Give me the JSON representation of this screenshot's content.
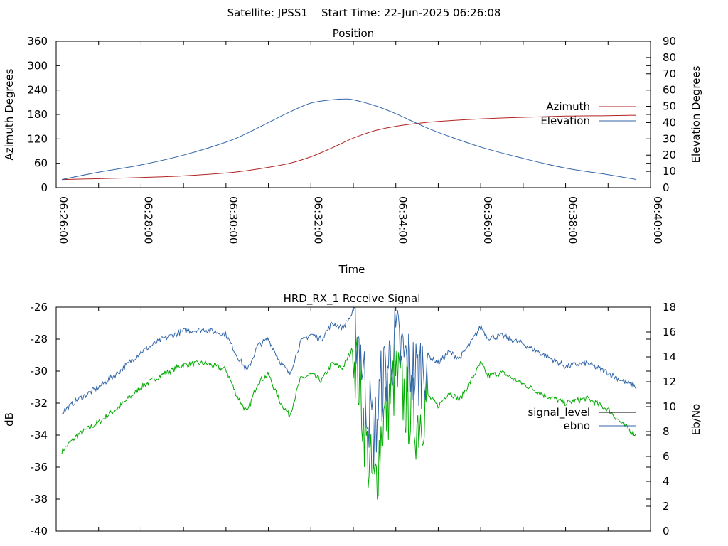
{
  "page": {
    "header": "Satellite: JPSS1    Start Time: 22-Jun-2025 06:26:08"
  },
  "colors": {
    "azimuth": "#b22222",
    "elevation": "#3366a8",
    "signal_level": "#000000",
    "ebno_plotted": "#3366a8",
    "signal_plotted": "#00aa00",
    "axes": "#000000",
    "background": "#ffffff"
  },
  "chart_data": [
    {
      "type": "line",
      "title": "Position",
      "xlabel": "Time",
      "ylabel": "Azimuth Degrees",
      "y2label": "Elevation Degrees",
      "xlim": [
        "06:26:00",
        "06:40:00"
      ],
      "ylim": [
        0,
        360
      ],
      "y2lim": [
        0,
        90
      ],
      "xticks": [
        "06:26:00",
        "06:28:00",
        "06:30:00",
        "06:32:00",
        "06:34:00",
        "06:36:00",
        "06:38:00",
        "06:40:00"
      ],
      "yticks": [
        "0",
        "60",
        "120",
        "180",
        "240",
        "300",
        "360"
      ],
      "y2ticks": [
        "0",
        "10",
        "20",
        "30",
        "40",
        "50",
        "60",
        "70",
        "80",
        "90"
      ],
      "legend_position": "right",
      "grid": false,
      "series": [
        {
          "name": "Azimuth",
          "axis": "y",
          "x": [
            "06:26:08",
            "06:27:00",
            "06:28:00",
            "06:29:00",
            "06:30:00",
            "06:30:30",
            "06:31:00",
            "06:31:30",
            "06:32:00",
            "06:32:30",
            "06:33:00",
            "06:33:30",
            "06:34:00",
            "06:34:30",
            "06:35:00",
            "06:36:00",
            "06:37:00",
            "06:38:00",
            "06:39:00",
            "06:39:40"
          ],
          "values": [
            20,
            22,
            25,
            29,
            36,
            42,
            50,
            60,
            76,
            98,
            122,
            140,
            151,
            158,
            163,
            169,
            173,
            176,
            177,
            178
          ]
        },
        {
          "name": "Elevation",
          "axis": "y2",
          "x": [
            "06:26:08",
            "06:27:00",
            "06:28:00",
            "06:29:00",
            "06:30:00",
            "06:30:30",
            "06:31:00",
            "06:31:30",
            "06:32:00",
            "06:32:30",
            "06:32:50",
            "06:33:00",
            "06:33:30",
            "06:34:00",
            "06:34:30",
            "06:35:00",
            "06:36:00",
            "06:37:00",
            "06:38:00",
            "06:39:00",
            "06:39:40"
          ],
          "values": [
            5,
            9.5,
            14,
            20,
            28,
            33.5,
            40,
            46.5,
            52,
            54,
            54.5,
            54,
            50.5,
            45.5,
            39.5,
            34,
            25,
            18,
            12,
            8,
            5
          ]
        }
      ]
    },
    {
      "type": "line",
      "title": "HRD_RX_1 Receive Signal",
      "ylabel": "dB",
      "y2label": "Eb/No",
      "ylim": [
        -40,
        -26
      ],
      "y2lim": [
        0,
        18
      ],
      "yticks": [
        "-40",
        "-38",
        "-36",
        "-34",
        "-32",
        "-30",
        "-28",
        "-26"
      ],
      "y2ticks": [
        "0",
        "2",
        "4",
        "6",
        "8",
        "10",
        "12",
        "14",
        "16",
        "18"
      ],
      "legend_position": "right",
      "grid": false,
      "series": [
        {
          "name": "signal_level",
          "axis": "y",
          "x": [
            "06:26:08",
            "06:26:30",
            "06:27:00",
            "06:27:30",
            "06:28:00",
            "06:28:30",
            "06:29:00",
            "06:29:30",
            "06:30:00",
            "06:30:15",
            "06:30:30",
            "06:30:45",
            "06:31:00",
            "06:31:15",
            "06:31:30",
            "06:31:45",
            "06:32:00",
            "06:32:15",
            "06:32:30",
            "06:32:45",
            "06:33:00",
            "06:33:10",
            "06:33:20",
            "06:33:30",
            "06:33:40",
            "06:34:00",
            "06:34:15",
            "06:34:30",
            "06:34:45",
            "06:35:00",
            "06:35:15",
            "06:35:30",
            "06:35:45",
            "06:36:00",
            "06:36:10",
            "06:36:30",
            "06:37:00",
            "06:37:30",
            "06:38:00",
            "06:38:30",
            "06:39:00",
            "06:39:20",
            "06:39:40"
          ],
          "values": [
            -35,
            -34,
            -33.2,
            -32.2,
            -31,
            -30.2,
            -29.6,
            -29.5,
            -29.9,
            -31.5,
            -32.6,
            -30.7,
            -30.2,
            -31.8,
            -32.8,
            -30.5,
            -30.2,
            -30.6,
            -29.5,
            -29.8,
            -28.5,
            -31.2,
            -35.2,
            -37.5,
            -33.5,
            -30.3,
            -32,
            -33.2,
            -31.5,
            -32.2,
            -31.3,
            -31.8,
            -30.7,
            -29.5,
            -30.3,
            -30.1,
            -30.8,
            -31.5,
            -32,
            -31.7,
            -32.4,
            -33.3,
            -34
          ]
        },
        {
          "name": "ebno",
          "axis": "y",
          "x": [
            "06:26:08",
            "06:26:30",
            "06:27:00",
            "06:27:30",
            "06:28:00",
            "06:28:30",
            "06:29:00",
            "06:29:30",
            "06:30:00",
            "06:30:15",
            "06:30:30",
            "06:30:45",
            "06:31:00",
            "06:31:15",
            "06:31:30",
            "06:31:45",
            "06:32:00",
            "06:32:15",
            "06:32:30",
            "06:32:45",
            "06:33:00",
            "06:33:10",
            "06:33:20",
            "06:33:30",
            "06:33:40",
            "06:34:00",
            "06:34:15",
            "06:34:30",
            "06:34:45",
            "06:35:00",
            "06:35:15",
            "06:35:30",
            "06:35:45",
            "06:36:00",
            "06:36:10",
            "06:36:30",
            "06:37:00",
            "06:37:30",
            "06:38:00",
            "06:38:30",
            "06:39:00",
            "06:39:20",
            "06:39:40"
          ],
          "values": [
            -32.6,
            -31.8,
            -31,
            -30,
            -28.8,
            -28,
            -27.5,
            -27.4,
            -27.7,
            -29,
            -30,
            -28.4,
            -28,
            -29.3,
            -30.2,
            -28.2,
            -27.7,
            -28,
            -27,
            -27.3,
            -26.3,
            -28.6,
            -32,
            -34,
            -30.8,
            -28.1,
            -29.5,
            -30.3,
            -29,
            -29.5,
            -28.8,
            -29.2,
            -28.3,
            -27.2,
            -27.9,
            -27.8,
            -28.3,
            -29,
            -29.7,
            -29.5,
            -30.1,
            -30.6,
            -31
          ]
        }
      ]
    }
  ]
}
